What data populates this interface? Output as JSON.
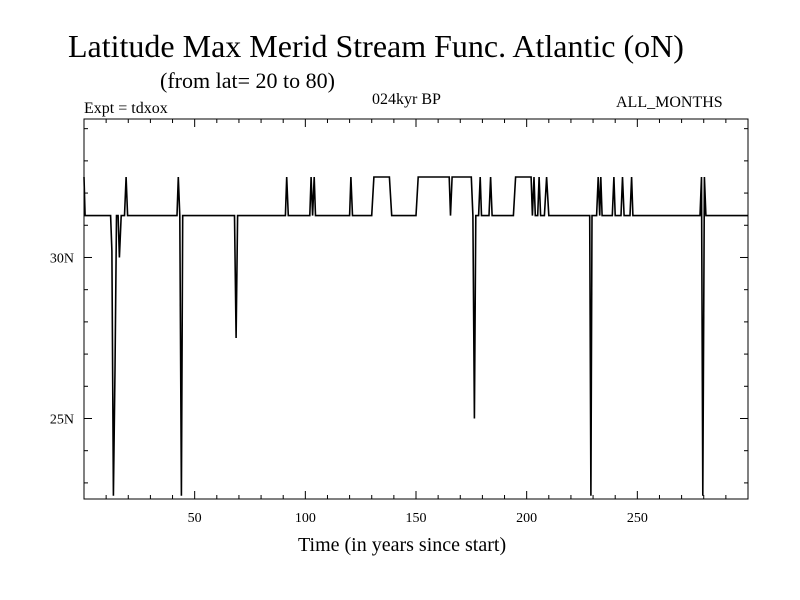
{
  "chart_data": {
    "type": "line",
    "title": "Latitude Max Merid Stream Func. Atlantic (oN)",
    "subtitle": "(from lat= 20 to 80)",
    "annotations": {
      "experiment": "Expt = tdxox",
      "period": "024kyr BP",
      "months": "ALL_MONTHS"
    },
    "xlabel": "Time (in years since start)",
    "ylabel": "",
    "xlim": [
      0,
      300
    ],
    "ylim": [
      22.5,
      34.3
    ],
    "x_ticks": [
      50,
      100,
      150,
      200,
      250
    ],
    "x_tick_labels": [
      "50",
      "100",
      "150",
      "200",
      "250"
    ],
    "y_ticks": [
      25,
      30
    ],
    "y_tick_labels": [
      "25N",
      "30N"
    ],
    "grid": false,
    "series": [
      {
        "x": [
          0,
          0.5,
          1,
          12,
          12.6,
          13.3,
          14,
          14.7,
          15.4,
          16,
          16.8,
          17.5,
          18.3,
          19,
          19.7,
          20.4,
          21.1,
          21.8,
          22.5,
          42,
          42.6,
          43.3,
          44,
          44.6,
          45.2,
          45.9,
          46.6,
          47.2,
          68,
          68.7,
          69.4,
          70.1,
          70.8,
          91,
          91.6,
          92.3,
          92.9,
          102,
          102.6,
          103.3,
          104,
          104.6,
          105.3,
          105.9,
          120,
          120.6,
          121.3,
          121.9,
          130,
          131,
          138,
          139,
          150,
          151,
          165,
          165.6,
          166.3,
          167,
          175,
          175.7,
          176.4,
          177,
          177.7,
          178.3,
          179,
          179.6,
          180.2,
          183,
          183.7,
          184.4,
          185,
          194,
          195,
          202,
          202.6,
          203.3,
          203.9,
          205,
          205.6,
          206.3,
          208,
          209,
          210,
          228,
          228.5,
          229,
          229.5,
          230,
          231,
          231.6,
          232.3,
          233,
          233.5,
          234.1,
          234.8,
          238,
          238.7,
          239.4,
          240,
          242,
          242.6,
          243.3,
          244,
          245,
          245.5,
          246.1,
          246.7,
          247.4,
          248,
          277,
          277.6,
          278.3,
          279,
          279.6,
          280.3,
          281,
          281.6,
          282.3,
          283,
          300
        ],
        "y": [
          32.5,
          31.3,
          31.3,
          31.3,
          30.2,
          22.6,
          26.5,
          31.3,
          31.3,
          30.0,
          31.3,
          31.3,
          31.3,
          32.5,
          31.3,
          31.3,
          31.3,
          31.3,
          31.3,
          31.3,
          32.5,
          31.3,
          22.6,
          31.3,
          31.3,
          31.3,
          31.3,
          31.3,
          31.3,
          27.5,
          31.3,
          31.3,
          31.3,
          31.3,
          32.5,
          31.3,
          31.3,
          31.3,
          32.5,
          31.3,
          32.5,
          31.3,
          31.3,
          31.3,
          31.3,
          32.5,
          31.3,
          31.3,
          31.3,
          32.5,
          32.5,
          31.3,
          31.3,
          32.5,
          32.5,
          31.3,
          32.5,
          32.5,
          32.5,
          31.3,
          25.0,
          31.3,
          31.3,
          31.3,
          32.5,
          31.3,
          31.3,
          31.3,
          32.5,
          31.3,
          31.3,
          31.3,
          32.5,
          32.5,
          31.3,
          32.5,
          31.3,
          31.3,
          32.5,
          31.3,
          31.3,
          32.5,
          31.3,
          31.3,
          31.3,
          22.6,
          31.3,
          31.3,
          31.3,
          31.3,
          32.5,
          31.3,
          32.5,
          31.3,
          31.3,
          31.3,
          31.3,
          32.5,
          31.3,
          31.3,
          31.3,
          32.5,
          31.3,
          31.3,
          31.3,
          31.3,
          31.3,
          32.5,
          31.3,
          31.3,
          31.3,
          31.3,
          32.5,
          22.6,
          32.5,
          31.3,
          31.3,
          31.3,
          31.3,
          31.3
        ]
      }
    ]
  }
}
